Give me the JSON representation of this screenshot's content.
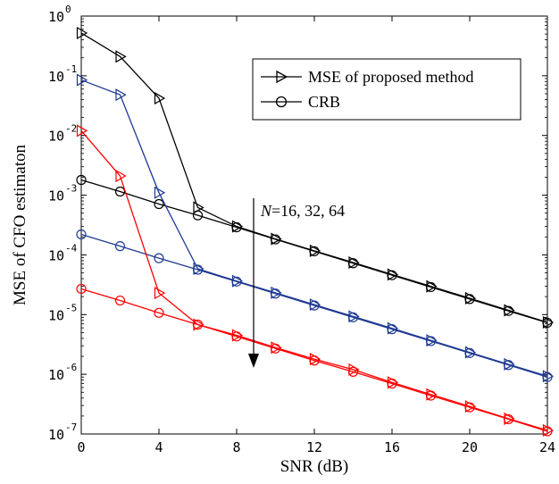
{
  "chart_data": {
    "type": "line",
    "xlabel": "SNR (dB)",
    "ylabel": "MSE of CFO estimaton",
    "xlim": [
      0,
      24
    ],
    "ylim": [
      1e-07,
      1
    ],
    "yscale": "log",
    "x_ticks": [
      0,
      4,
      8,
      12,
      16,
      20,
      24
    ],
    "x_tick_labels": [
      "0",
      "4",
      "8",
      "12",
      "16",
      "20",
      "24"
    ],
    "y_ticks": [
      {
        "base": "10",
        "exp": "-7",
        "value": 1e-07
      },
      {
        "base": "10",
        "exp": "-6",
        "value": 1e-06
      },
      {
        "base": "10",
        "exp": "-5",
        "value": 1e-05
      },
      {
        "base": "10",
        "exp": "-4",
        "value": 0.0001
      },
      {
        "base": "10",
        "exp": "-3",
        "value": 0.001
      },
      {
        "base": "10",
        "exp": "-2",
        "value": 0.01
      },
      {
        "base": "10",
        "exp": "-1",
        "value": 0.1
      },
      {
        "base": "10",
        "exp": "0",
        "value": 1
      }
    ],
    "grid": false,
    "legend_position": "top-right",
    "legend": [
      {
        "label": "MSE of proposed method",
        "marker": "triangle-right",
        "color": "#000000"
      },
      {
        "label": "CRB",
        "marker": "circle",
        "color": "#000000"
      }
    ],
    "annotation": {
      "italic": "N",
      "rest": "=16, 32, 64",
      "arrow": "down"
    },
    "x": [
      0,
      2,
      4,
      6,
      8,
      10,
      12,
      14,
      16,
      18,
      20,
      22,
      24
    ],
    "series": [
      {
        "group": "N=16",
        "kind": "MSE",
        "marker": "triangle-right",
        "color": "#000000",
        "values": [
          0.52,
          0.21,
          0.042,
          0.00062,
          0.0003,
          0.000185,
          0.000117,
          7.45e-05,
          4.7e-05,
          2.97e-05,
          1.88e-05,
          1.18e-05,
          7.4e-06
        ]
      },
      {
        "group": "N=16",
        "kind": "CRB",
        "marker": "circle",
        "color": "#000000",
        "values": [
          0.0018,
          0.00115,
          0.00071,
          0.00046,
          0.00029,
          0.000182,
          0.000115,
          7.25e-05,
          4.57e-05,
          2.89e-05,
          1.82e-05,
          1.15e-05,
          7.3e-06
        ]
      },
      {
        "group": "N=32",
        "kind": "MSE",
        "marker": "triangle-right",
        "color": "#1f3a93",
        "values": [
          0.085,
          0.048,
          0.0011,
          5.85e-05,
          3.65e-05,
          2.32e-05,
          1.47e-05,
          9.3e-06,
          5.9e-06,
          3.7e-06,
          2.33e-06,
          1.47e-06,
          9.3e-07
        ]
      },
      {
        "group": "N=32",
        "kind": "CRB",
        "marker": "circle",
        "color": "#1f3a93",
        "values": [
          0.00022,
          0.00014,
          8.8e-05,
          5.65e-05,
          3.57e-05,
          2.25e-05,
          1.42e-05,
          9e-06,
          5.7e-06,
          3.6e-06,
          2.27e-06,
          1.43e-06,
          9e-07
        ]
      },
      {
        "group": "N=64",
        "kind": "MSE",
        "marker": "triangle-right",
        "color": "#ff0000",
        "values": [
          0.012,
          0.0021,
          2.3e-05,
          6.8e-06,
          4.5e-06,
          2.8e-06,
          1.8e-06,
          1.2e-06,
          7.3e-07,
          4.6e-07,
          2.9e-07,
          1.8e-07,
          1.15e-07
        ]
      },
      {
        "group": "N=64",
        "kind": "CRB",
        "marker": "circle",
        "color": "#ff0000",
        "values": [
          2.7e-05,
          1.72e-05,
          1.07e-05,
          6.8e-06,
          4.3e-06,
          2.7e-06,
          1.7e-06,
          1.1e-06,
          7e-07,
          4.4e-07,
          2.8e-07,
          1.77e-07,
          1.11e-07
        ]
      }
    ]
  }
}
